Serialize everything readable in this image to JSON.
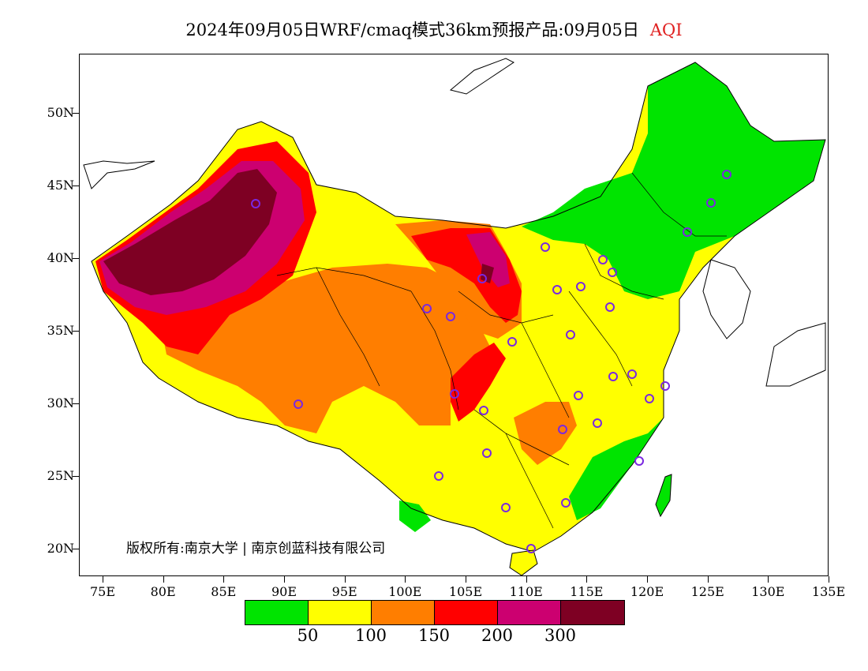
{
  "title": {
    "main": "2024年09月05日WRF/cmaq模式36km预报产品:09月05日",
    "variable": "AQI"
  },
  "map": {
    "lat_ticks": [
      "50N",
      "45N",
      "40N",
      "35N",
      "30N",
      "25N",
      "20N"
    ],
    "lon_ticks": [
      "75E",
      "80E",
      "85E",
      "90E",
      "95E",
      "100E",
      "105E",
      "110E",
      "115E",
      "120E",
      "125E",
      "130E",
      "135E"
    ],
    "copyright": "版权所有:南京大学 | 南京创蓝科技有限公司",
    "colors": {
      "good": "#00e400",
      "moderate": "#ffff00",
      "usg": "#ff7e00",
      "unhealthy": "#ff0000",
      "very_unhealthy": "#cc0070",
      "hazardous": "#7e0023",
      "station": "#7a28e0"
    }
  },
  "legend": {
    "colors": [
      "#00e400",
      "#ffff00",
      "#ff7e00",
      "#ff0000",
      "#cc0070",
      "#7e0023"
    ],
    "labels": [
      "50",
      "100",
      "150",
      "200",
      "300"
    ]
  }
}
